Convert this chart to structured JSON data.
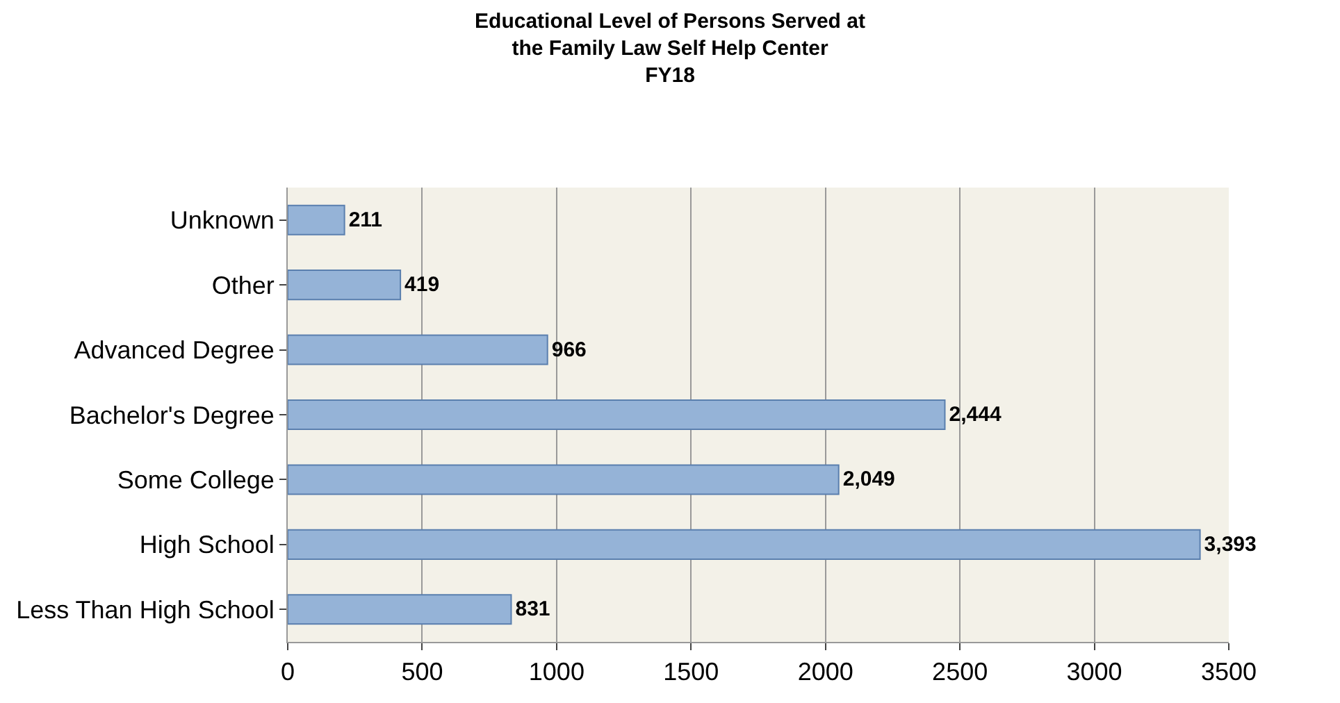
{
  "chart_data": {
    "type": "bar",
    "orientation": "horizontal",
    "title": "Educational Level of Persons Served at\nthe Family Law Self Help Center\nFY18",
    "categories": [
      "Unknown",
      "Other",
      "Advanced Degree",
      "Bachelor's Degree",
      "Some College",
      "High School",
      "Less Than High School"
    ],
    "values": [
      211,
      419,
      966,
      2444,
      2049,
      3393,
      831
    ],
    "color": "#95b3d7",
    "xlim": [
      0,
      3500
    ],
    "xticks": [
      0,
      500,
      1000,
      1500,
      2000,
      2500,
      3000,
      3500
    ],
    "value_labels": [
      "211",
      "419",
      "966",
      "2,444",
      "2,049",
      "3,393",
      "831"
    ],
    "grid": "x",
    "legend": false
  }
}
